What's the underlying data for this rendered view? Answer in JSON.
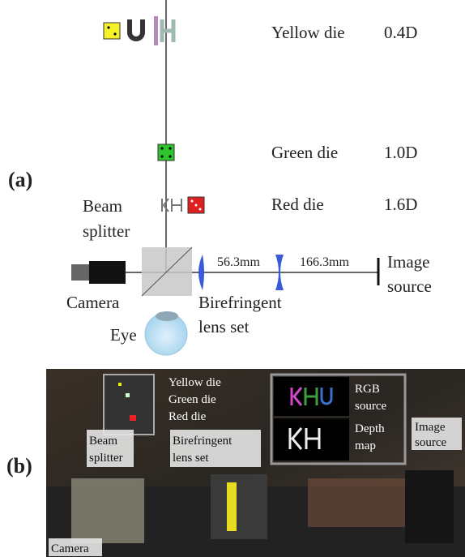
{
  "panel_a": {
    "label": "(a)",
    "yellow_die": {
      "name": "Yellow die",
      "power": "0.4D"
    },
    "green_die": {
      "name": "Green die",
      "power": "1.0D"
    },
    "red_die": {
      "name": "Red die",
      "power": "1.6D"
    },
    "beam_splitter": [
      "Beam",
      "splitter"
    ],
    "camera": "Camera",
    "eye": "Eye",
    "birefringent": [
      "Birefringent",
      "lens set"
    ],
    "distance_1": "56.3mm",
    "distance_2": "166.3mm",
    "image_source": [
      "Image",
      "source"
    ]
  },
  "panel_b": {
    "label": "(b)",
    "dice": [
      "Yellow die",
      "Green die",
      "Red die"
    ],
    "rgb_source": [
      "RGB",
      "source"
    ],
    "depth_map": [
      "Depth",
      "map"
    ],
    "image_source": [
      "Image",
      "source"
    ],
    "beam_splitter": [
      "Beam",
      "splitter"
    ],
    "birefringent": [
      "Birefringent",
      "lens set"
    ],
    "camera": "Camera"
  }
}
